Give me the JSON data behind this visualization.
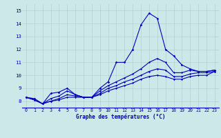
{
  "xlabel": "Graphe des températures (°C)",
  "bg_color": "#cce8e8",
  "line_color": "#0000bb",
  "grid_color": "#aacccc",
  "xlim": [
    -0.5,
    23.5
  ],
  "ylim": [
    7.5,
    15.5
  ],
  "yticks": [
    8,
    9,
    10,
    11,
    12,
    13,
    14,
    15
  ],
  "xticks": [
    0,
    1,
    2,
    3,
    4,
    5,
    6,
    7,
    8,
    9,
    10,
    11,
    12,
    13,
    14,
    15,
    16,
    17,
    18,
    19,
    20,
    21,
    22,
    23
  ],
  "curve1_x": [
    0,
    1,
    2,
    3,
    4,
    5,
    6,
    7,
    8,
    9,
    10,
    11,
    12,
    13,
    14,
    15,
    16,
    17,
    18,
    19,
    20,
    21,
    22,
    23
  ],
  "curve1_y": [
    8.3,
    8.2,
    7.8,
    8.6,
    8.7,
    9.0,
    8.5,
    8.3,
    8.3,
    9.0,
    9.5,
    11.0,
    11.0,
    12.0,
    13.9,
    14.8,
    14.4,
    12.0,
    11.5,
    10.8,
    10.5,
    10.3,
    10.3,
    10.4
  ],
  "curve2_x": [
    0,
    1,
    2,
    3,
    4,
    5,
    6,
    7,
    8,
    9,
    10,
    11,
    12,
    13,
    14,
    15,
    16,
    17,
    18,
    19,
    20,
    21,
    22,
    23
  ],
  "curve2_y": [
    8.3,
    8.1,
    7.8,
    8.2,
    8.4,
    8.8,
    8.5,
    8.3,
    8.3,
    8.8,
    9.2,
    9.5,
    9.8,
    10.1,
    10.5,
    11.0,
    11.3,
    11.0,
    10.2,
    10.2,
    10.4,
    10.3,
    10.3,
    10.4
  ],
  "curve3_x": [
    0,
    1,
    2,
    3,
    4,
    5,
    6,
    7,
    8,
    9,
    10,
    11,
    12,
    13,
    14,
    15,
    16,
    17,
    18,
    19,
    20,
    21,
    22,
    23
  ],
  "curve3_y": [
    8.3,
    8.1,
    7.8,
    8.0,
    8.2,
    8.5,
    8.4,
    8.3,
    8.3,
    8.6,
    9.0,
    9.2,
    9.5,
    9.7,
    10.0,
    10.3,
    10.5,
    10.4,
    9.9,
    9.9,
    10.1,
    10.2,
    10.2,
    10.3
  ],
  "curve4_x": [
    0,
    1,
    2,
    3,
    4,
    5,
    6,
    7,
    8,
    9,
    10,
    11,
    12,
    13,
    14,
    15,
    16,
    17,
    18,
    19,
    20,
    21,
    22,
    23
  ],
  "curve4_y": [
    8.3,
    8.1,
    7.8,
    8.0,
    8.1,
    8.3,
    8.3,
    8.3,
    8.3,
    8.5,
    8.8,
    9.0,
    9.2,
    9.4,
    9.7,
    9.9,
    10.0,
    9.9,
    9.7,
    9.7,
    9.9,
    10.0,
    10.0,
    10.3
  ],
  "xlabel_fontsize": 5.5,
  "tick_fontsize": 4.8,
  "linewidth": 0.8,
  "markersize": 1.8
}
